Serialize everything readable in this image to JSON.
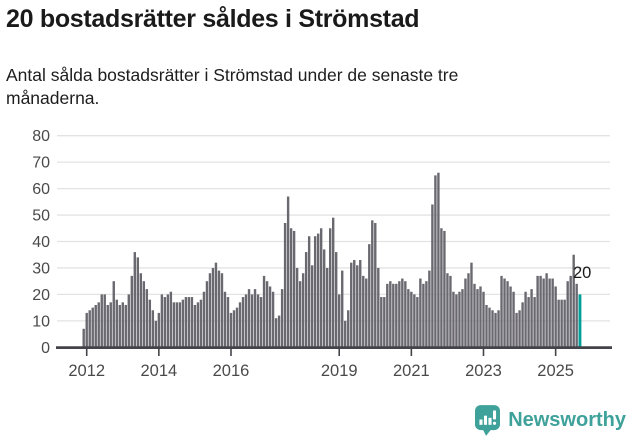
{
  "header": {
    "title": "20 bostadsrätter såldes i Strömstad",
    "subtitle": "Antal sålda bostadsrätter i Strömstad under de senaste tre\nmånaderna."
  },
  "chart_data": {
    "type": "bar",
    "title": "20 bostadsrätter såldes i Strömstad",
    "xlabel": "",
    "ylabel": "",
    "frequency": "monthly",
    "x_start": "2011-12",
    "x_end": "2025-09",
    "values": [
      7,
      13,
      14,
      15,
      16,
      17,
      20,
      20,
      16,
      17,
      25,
      18,
      16,
      17,
      16,
      20,
      27,
      36,
      34,
      28,
      25,
      22,
      18,
      14,
      10,
      13,
      20,
      19,
      20,
      21,
      17,
      17,
      17,
      18,
      19,
      19,
      19,
      16,
      17,
      18,
      21,
      25,
      28,
      30,
      32,
      29,
      28,
      21,
      19,
      13,
      14,
      15,
      17,
      19,
      20,
      22,
      20,
      22,
      20,
      19,
      27,
      25,
      23,
      21,
      11,
      12,
      22,
      47,
      57,
      45,
      44,
      30,
      25,
      28,
      36,
      42,
      31,
      42,
      43,
      45,
      37,
      30,
      45,
      49,
      36,
      20,
      29,
      10,
      14,
      32,
      33,
      31,
      33,
      27,
      26,
      39,
      48,
      47,
      30,
      19,
      19,
      24,
      25,
      24,
      24,
      25,
      26,
      25,
      22,
      21,
      20,
      19,
      26,
      24,
      25,
      29,
      54,
      65,
      66,
      45,
      44,
      28,
      27,
      21,
      20,
      21,
      22,
      26,
      28,
      32,
      24,
      22,
      23,
      21,
      16,
      15,
      14,
      13,
      14,
      27,
      26,
      25,
      23,
      21,
      13,
      14,
      17,
      21,
      19,
      22,
      19,
      27,
      27,
      26,
      28,
      26,
      26,
      23,
      18,
      18,
      18,
      25,
      27,
      35,
      24,
      20
    ],
    "ylim": [
      0,
      80
    ],
    "yticks": [
      0,
      10,
      20,
      30,
      40,
      50,
      60,
      70,
      80
    ],
    "xticks": [
      {
        "label": "2012",
        "index": 1
      },
      {
        "label": "2014",
        "index": 25
      },
      {
        "label": "2016",
        "index": 49
      },
      {
        "label": "2019",
        "index": 85
      },
      {
        "label": "2021",
        "index": 109
      },
      {
        "label": "2023",
        "index": 133
      },
      {
        "label": "2025",
        "index": 157
      }
    ],
    "grid": true,
    "legend": "none",
    "highlight_last": true,
    "annotation": {
      "text": "20",
      "value": 20
    },
    "colors": {
      "bar": "#6a6970",
      "highlight": "#009e96",
      "grid": "#e3e3e3",
      "axis": "#45434a",
      "tick_text": "#4a4a4a",
      "annotation_text": "#1a1a1a"
    }
  },
  "footer": {
    "brand": "Newsworthy",
    "logo_icon": "bar-chart-speech-bubble-icon",
    "brand_color": "#3ea19a"
  }
}
